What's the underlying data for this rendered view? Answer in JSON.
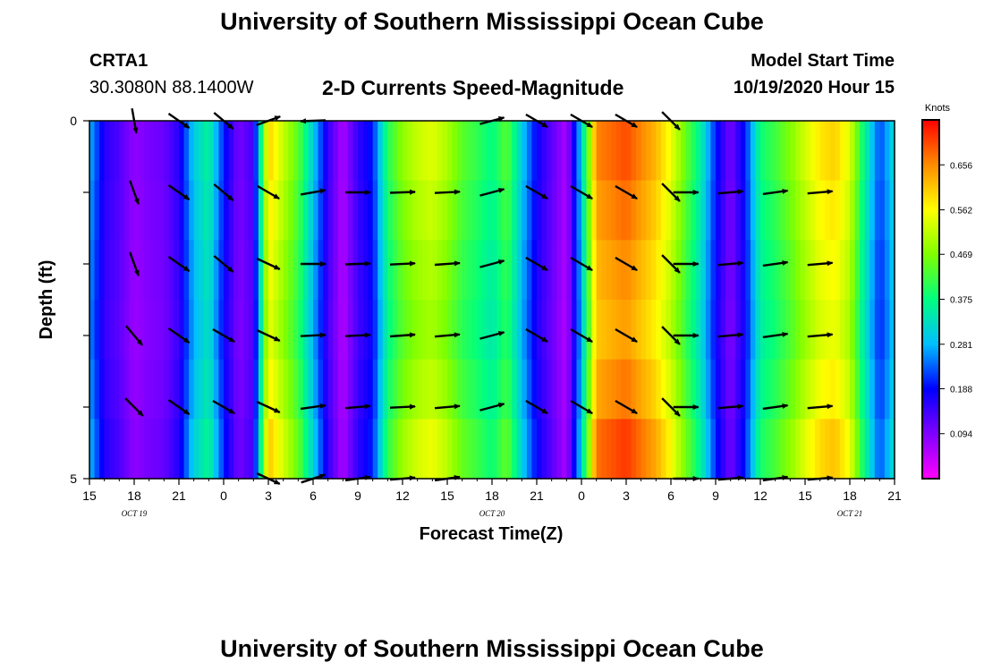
{
  "header": {
    "title": "University of Southern Mississippi Ocean Cube",
    "station": "CRTA1",
    "location": "30.3080N 88.1400W",
    "product": "2-D Currents Speed-Magnitude",
    "start_label": "Model Start Time",
    "start_value": "10/19/2020 Hour 15"
  },
  "footer": {
    "title": "University of Southern Mississippi Ocean Cube"
  },
  "colors": {
    "scale": [
      "#ff00ff",
      "#7f00ff",
      "#0000ff",
      "#00bfff",
      "#00ff7f",
      "#7fff00",
      "#ffff00",
      "#ff8c00",
      "#ff0000"
    ],
    "arrow": "#000000",
    "axis": "#000000"
  },
  "chart_data": {
    "type": "heatmap",
    "subtype": "time-depth current speed with direction vectors",
    "title": "2-D Currents Speed-Magnitude",
    "xlabel": "Forecast Time(Z)",
    "ylabel": "Depth (ft)",
    "x_ticks": [
      "15",
      "18",
      "21",
      "0",
      "3",
      "6",
      "9",
      "12",
      "15",
      "18",
      "21",
      "0",
      "3",
      "6",
      "9",
      "12",
      "15",
      "18",
      "21"
    ],
    "date_labels": [
      {
        "text": "OCT 19",
        "hour": 3
      },
      {
        "text": "OCT 20",
        "hour": 27
      },
      {
        "text": "OCT 21",
        "hour": 51
      }
    ],
    "x_range_hours": [
      0,
      54
    ],
    "y_ticks": [
      "0",
      "5"
    ],
    "y_range_ft": [
      0,
      5
    ],
    "colorbar": {
      "unit": "Knots",
      "range": [
        0.0,
        0.75
      ],
      "ticks": [
        "0.656",
        "0.562",
        "0.469",
        "0.375",
        "0.281",
        "0.188",
        "0.094"
      ]
    },
    "speed_profile": {
      "hours": [
        0,
        1,
        2,
        3,
        4,
        5,
        6,
        7,
        8,
        9,
        10,
        11,
        12,
        13,
        14,
        15,
        16,
        17,
        18,
        19,
        20,
        21,
        22,
        23,
        24,
        25,
        26,
        27,
        28,
        29,
        30,
        31,
        32,
        33,
        34,
        35,
        36,
        37,
        38,
        39,
        40,
        41,
        42,
        43,
        44,
        45,
        46,
        47,
        48,
        49,
        50,
        51,
        52,
        53,
        54
      ],
      "knots": [
        0.28,
        0.16,
        0.13,
        0.08,
        0.1,
        0.11,
        0.16,
        0.3,
        0.36,
        0.2,
        0.1,
        0.14,
        0.6,
        0.52,
        0.44,
        0.3,
        0.15,
        0.06,
        0.15,
        0.2,
        0.4,
        0.48,
        0.52,
        0.54,
        0.5,
        0.44,
        0.41,
        0.37,
        0.44,
        0.3,
        0.18,
        0.12,
        0.06,
        0.3,
        0.66,
        0.68,
        0.7,
        0.66,
        0.62,
        0.55,
        0.45,
        0.35,
        0.2,
        0.1,
        0.2,
        0.38,
        0.42,
        0.47,
        0.53,
        0.58,
        0.6,
        0.54,
        0.36,
        0.22,
        0.32
      ],
      "depth_factor": [
        1.0,
        0.97,
        0.94,
        0.92,
        0.96,
        1.02
      ]
    },
    "vectors": [
      {
        "hour": 3.0,
        "dirs": [
          -80,
          -70,
          -70,
          -50,
          -45,
          null
        ]
      },
      {
        "hour": 6.0,
        "dirs": [
          -35,
          -35,
          -35,
          -35,
          -35,
          null
        ]
      },
      {
        "hour": 9.0,
        "dirs": [
          -40,
          -40,
          -40,
          -30,
          -30,
          null
        ]
      },
      {
        "hour": 12.0,
        "dirs": [
          20,
          -30,
          -25,
          -25,
          -25,
          -25
        ]
      },
      {
        "hour": 15.0,
        "dirs": [
          -178,
          10,
          0,
          3,
          8,
          18
        ]
      },
      {
        "hour": 18.0,
        "dirs": [
          null,
          0,
          2,
          3,
          5,
          8
        ]
      },
      {
        "hour": 21.0,
        "dirs": [
          null,
          2,
          3,
          4,
          3,
          5
        ]
      },
      {
        "hour": 24.0,
        "dirs": [
          null,
          3,
          4,
          5,
          5,
          8
        ]
      },
      {
        "hour": 27.0,
        "dirs": [
          15,
          15,
          15,
          15,
          15,
          null
        ]
      },
      {
        "hour": 30.0,
        "dirs": [
          -30,
          -30,
          -30,
          -30,
          -30,
          null
        ]
      },
      {
        "hour": 33.0,
        "dirs": [
          -30,
          -30,
          -30,
          -30,
          -30,
          null
        ]
      },
      {
        "hour": 36.0,
        "dirs": [
          -30,
          -30,
          -30,
          -30,
          -30,
          null
        ]
      },
      {
        "hour": 39.0,
        "dirs": [
          -45,
          -45,
          -45,
          -45,
          -45,
          null
        ]
      },
      {
        "hour": 40.0,
        "dirs": [
          null,
          0,
          0,
          0,
          0,
          0
        ]
      },
      {
        "hour": 43.0,
        "dirs": [
          null,
          5,
          5,
          5,
          5,
          5
        ]
      },
      {
        "hour": 46.0,
        "dirs": [
          null,
          8,
          8,
          8,
          8,
          8
        ]
      },
      {
        "hour": 49.0,
        "dirs": [
          null,
          5,
          5,
          5,
          5,
          5
        ]
      }
    ]
  }
}
